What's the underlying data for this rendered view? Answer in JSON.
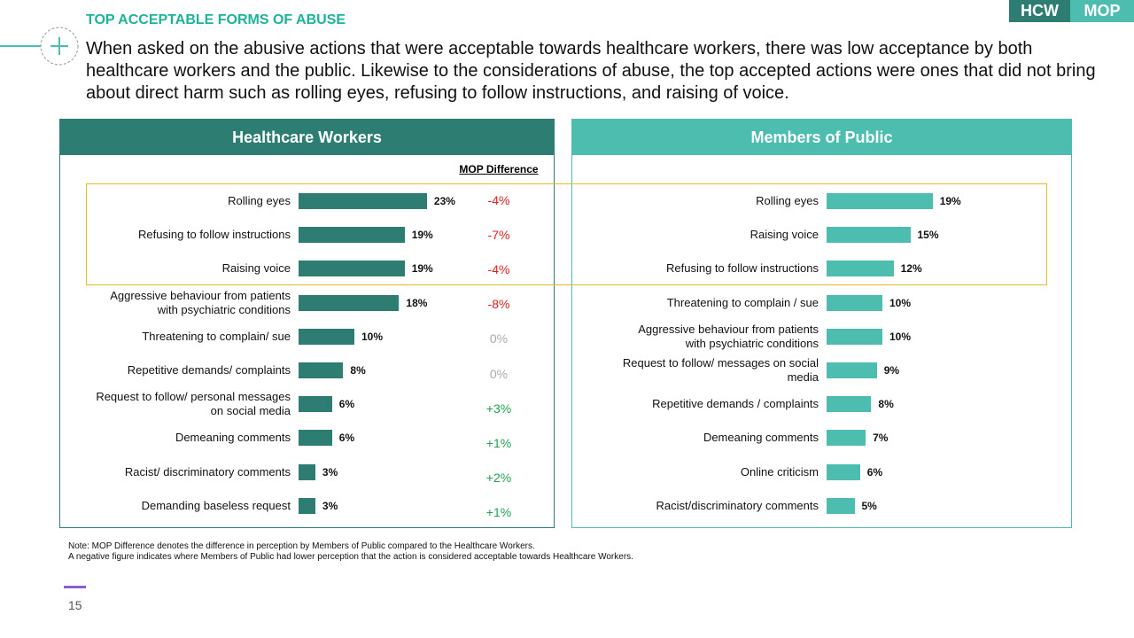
{
  "header": {
    "section_title": "TOP ACCEPTABLE FORMS OF ABUSE",
    "badges": [
      "HCW",
      "MOP"
    ],
    "body": "When asked on the abusive actions that were acceptable towards healthcare workers, there was low acceptance by both healthcare workers and the public. Likewise to the considerations of abuse, the top accepted actions were ones that did not bring about direct harm such as rolling eyes, refusing to follow instructions, and raising of voice."
  },
  "chart_data": [
    {
      "type": "bar",
      "orientation": "horizontal",
      "title": "Healthcare Workers",
      "color": "#2e7d72",
      "categories": [
        "Rolling eyes",
        "Refusing to follow instructions",
        "Raising voice",
        "Aggressive behaviour from patients\nwith psychiatric conditions",
        "Threatening to complain/ sue",
        "Repetitive demands/ complaints",
        "Request to follow/ personal messages\non social media",
        "Demeaning comments",
        "Racist/ discriminatory comments",
        "Demanding baseless request"
      ],
      "values": [
        23,
        19,
        19,
        18,
        10,
        8,
        6,
        6,
        3,
        3
      ],
      "value_labels": [
        "23%",
        "19%",
        "19%",
        "18%",
        "10%",
        "8%",
        "6%",
        "6%",
        "3%",
        "3%"
      ],
      "mop_difference": {
        "title": "MOP Difference",
        "values": [
          -4,
          -7,
          -4,
          -8,
          0,
          0,
          3,
          1,
          2,
          1
        ],
        "value_labels": [
          "-4%",
          "-7%",
          "-4%",
          "-8%",
          "0%",
          "0%",
          "+3%",
          "+1%",
          "+2%",
          "+1%"
        ]
      }
    },
    {
      "type": "bar",
      "orientation": "horizontal",
      "title": "Members of Public",
      "color": "#4dbdb0",
      "categories": [
        "Rolling eyes",
        "Raising voice",
        "Refusing to follow instructions",
        "Threatening to complain / sue",
        "Aggressive behaviour from patients\nwith psychiatric conditions",
        "Request to follow/ messages on social\nmedia",
        "Repetitive demands / complaints",
        "Demeaning comments",
        "Online criticism",
        "Racist/discriminatory comments"
      ],
      "values": [
        19,
        15,
        12,
        10,
        10,
        9,
        8,
        7,
        6,
        5
      ],
      "value_labels": [
        "19%",
        "15%",
        "12%",
        "10%",
        "10%",
        "9%",
        "8%",
        "7%",
        "6%",
        "5%"
      ]
    }
  ],
  "notes": [
    "Note: MOP Difference denotes the difference in perception by Members of Public compared to the Healthcare Workers.",
    "A negative figure indicates where Members of Public had lower perception that the action is considered acceptable towards Healthcare Workers."
  ],
  "page_number": "15"
}
